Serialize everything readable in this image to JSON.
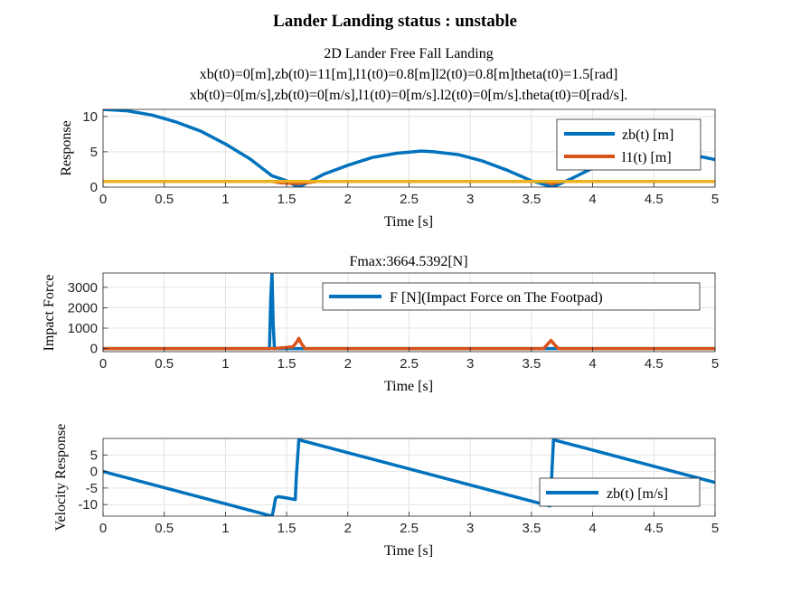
{
  "figure": {
    "suptitle": "Lander Landing status : unstable"
  },
  "chart_data": [
    {
      "type": "line",
      "title_lines": [
        "2D Lander Free Fall Landing",
        "xb(t0)=0[m],zb(t0)=11[m],l1(t0)=0.8[m]l2(t0)=0.8[m]theta(t0)=1.5[rad]",
        "xb(t0)=0[m/s],zb(t0)=0[m/s],l1(t0)=0[m/s].l2(t0)=0[m/s].theta(t0)=0[rad/s]."
      ],
      "xlabel": "Time [s]",
      "ylabel": "Response",
      "xlim": [
        0,
        5
      ],
      "ylim": [
        0,
        11
      ],
      "xticks": [
        0,
        0.5,
        1,
        1.5,
        2,
        2.5,
        3,
        3.5,
        4,
        4.5,
        5
      ],
      "xtick_labels": [
        "0",
        "0.5",
        "1",
        "1.5",
        "2",
        "2.5",
        "3",
        "3.5",
        "4",
        "4.5",
        "5"
      ],
      "yticks": [
        0,
        5,
        10
      ],
      "ytick_labels": [
        "0",
        "5",
        "10"
      ],
      "grid": true,
      "legend_position": "top-right",
      "series": [
        {
          "name": "zb(t) [m]",
          "color": "#0072BD",
          "x": [
            0,
            0.2,
            0.4,
            0.6,
            0.8,
            1.0,
            1.2,
            1.38,
            1.45,
            1.5,
            1.55,
            1.6,
            1.7,
            1.8,
            2.0,
            2.2,
            2.4,
            2.6,
            2.7,
            2.9,
            3.1,
            3.3,
            3.5,
            3.6,
            3.67,
            3.75,
            3.85,
            4.0,
            4.2,
            4.4,
            4.6,
            4.8,
            5.0
          ],
          "values": [
            11.0,
            10.8,
            10.2,
            9.2,
            7.9,
            6.1,
            4.0,
            1.6,
            1.2,
            0.9,
            0.4,
            0.0,
            0.9,
            1.8,
            3.1,
            4.2,
            4.8,
            5.1,
            5.0,
            4.6,
            3.7,
            2.4,
            0.9,
            0.4,
            0.0,
            0.6,
            1.4,
            2.7,
            3.9,
            4.6,
            5.1,
            4.6,
            3.9
          ]
        },
        {
          "name": "l1(t) [m]",
          "color": "#D95319",
          "x": [
            0,
            1.38,
            1.45,
            1.6,
            1.75,
            3.6,
            3.67,
            3.75,
            5.0
          ],
          "values": [
            0.8,
            0.8,
            0.6,
            0.5,
            0.8,
            0.8,
            0.5,
            0.8,
            0.8
          ]
        },
        {
          "color": "#EDB120",
          "x": [
            0,
            5.0
          ],
          "values": [
            0.8,
            0.8
          ]
        }
      ]
    },
    {
      "type": "line",
      "title": "Fmax:3664.5392[N]",
      "xlabel": "Time [s]",
      "ylabel": "Impact Force",
      "xlim": [
        0,
        5
      ],
      "ylim": [
        -150,
        3700
      ],
      "xticks": [
        0,
        0.5,
        1,
        1.5,
        2,
        2.5,
        3,
        3.5,
        4,
        4.5,
        5
      ],
      "xtick_labels": [
        "0",
        "0.5",
        "1",
        "1.5",
        "2",
        "2.5",
        "3",
        "3.5",
        "4",
        "4.5",
        "5"
      ],
      "yticks": [
        0,
        1000,
        2000,
        3000
      ],
      "ytick_labels": [
        "0",
        "1000",
        "2000",
        "3000"
      ],
      "grid": true,
      "legend_position": "top-right",
      "series": [
        {
          "name": "F [N](Impact Force on The Footpad)",
          "color": "#0072BD",
          "x": [
            0,
            1.36,
            1.37,
            1.38,
            1.39,
            1.4,
            1.41,
            5.0
          ],
          "values": [
            0,
            0,
            2500,
            3664.5,
            1200,
            0,
            0,
            0
          ]
        },
        {
          "color": "#D95319",
          "x": [
            0,
            1.4,
            1.45,
            1.5,
            1.55,
            1.58,
            1.6,
            1.62,
            1.65,
            3.6,
            3.63,
            3.66,
            3.69,
            3.72,
            5.0
          ],
          "values": [
            0,
            0,
            30,
            60,
            80,
            300,
            500,
            250,
            0,
            0,
            200,
            400,
            180,
            0,
            0
          ]
        }
      ]
    },
    {
      "type": "line",
      "xlabel": "Time [s]",
      "ylabel": "Velocity Response",
      "xlim": [
        0,
        5
      ],
      "ylim": [
        -13.5,
        10
      ],
      "xticks": [
        0,
        0.5,
        1,
        1.5,
        2,
        2.5,
        3,
        3.5,
        4,
        4.5,
        5
      ],
      "xtick_labels": [
        "0",
        "0.5",
        "1",
        "1.5",
        "2",
        "2.5",
        "3",
        "3.5",
        "4",
        "4.5",
        "5"
      ],
      "yticks": [
        -10,
        -5,
        0,
        5
      ],
      "ytick_labels": [
        "-10",
        "-5",
        "0",
        "5"
      ],
      "grid": true,
      "legend_position": "bottom-right",
      "series": [
        {
          "name": "zb(t) [m/s]",
          "color": "#0072BD",
          "x": [
            0,
            1.38,
            1.39,
            1.41,
            1.43,
            1.5,
            1.57,
            1.58,
            1.6,
            3.65,
            3.66,
            3.68,
            5.0
          ],
          "values": [
            0,
            -13.5,
            -12,
            -8,
            -7.6,
            -8.0,
            -8.5,
            -1,
            9.6,
            -10.4,
            -5,
            9.6,
            -3.3
          ]
        }
      ]
    }
  ]
}
